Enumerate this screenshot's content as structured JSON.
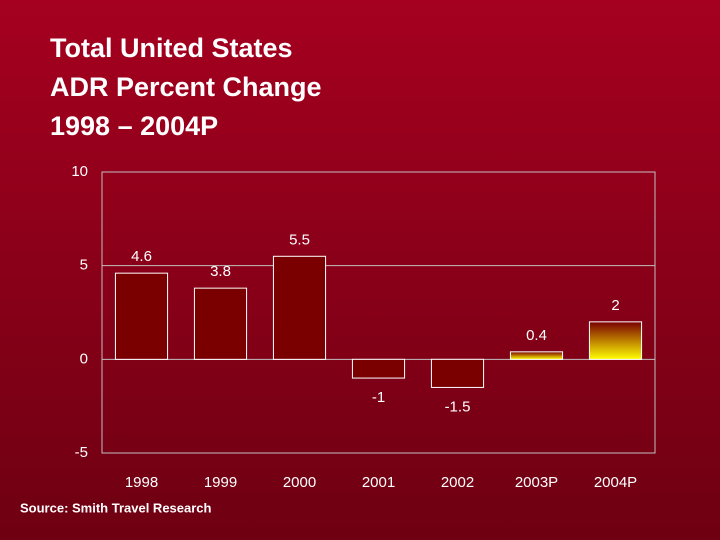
{
  "chart_data": {
    "type": "bar",
    "title_lines": [
      "Total United States",
      "ADR Percent Change",
      "1998 – 2004P"
    ],
    "source": "Source: Smith Travel Research",
    "categories": [
      "1998",
      "1999",
      "2000",
      "2001",
      "2002",
      "2003P",
      "2004P"
    ],
    "values": [
      4.6,
      3.8,
      5.5,
      -1,
      -1.5,
      0.4,
      2
    ],
    "gradient_from": "#7a0000",
    "colors": [
      "#7a0000",
      "#7a0000",
      "#7a0000",
      "#7a0000",
      "#7a0000",
      "#ffff00",
      "#ffff00"
    ],
    "ylim": [
      -5,
      10
    ],
    "yticks": [
      -5,
      0,
      5,
      10
    ],
    "grid": true
  }
}
